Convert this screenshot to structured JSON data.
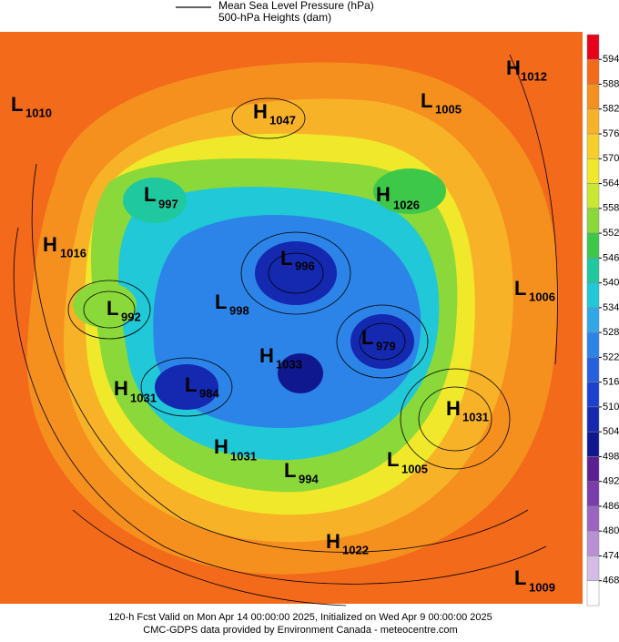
{
  "header": {
    "legend_line": "Mean Sea Level Pressure (hPa)",
    "legend_fill": "500-hPa Heights (dam)"
  },
  "colorbar": {
    "ticks": [
      594,
      588,
      582,
      576,
      570,
      564,
      558,
      552,
      546,
      540,
      534,
      528,
      522,
      516,
      510,
      504,
      498,
      492,
      486,
      480,
      474,
      468
    ],
    "colors": [
      "#e8001a",
      "#f26a1a",
      "#f5901e",
      "#f8b228",
      "#f8ce2a",
      "#f0e82a",
      "#c8e832",
      "#8ad83a",
      "#3ec84a",
      "#20c8a0",
      "#20c8d8",
      "#30a8e8",
      "#2c84e8",
      "#2460e0",
      "#1c40d0",
      "#1428b0",
      "#101890",
      "#5a2090",
      "#7a3ca8",
      "#9a64c0",
      "#b890d4",
      "#d4bce6",
      "#ffffff"
    ]
  },
  "centers": [
    {
      "type": "H",
      "value": 1012
    },
    {
      "type": "L",
      "value": 1010
    },
    {
      "type": "H",
      "value": 1047
    },
    {
      "type": "L",
      "value": 1005
    },
    {
      "type": "L",
      "value": 997
    },
    {
      "type": "H",
      "value": 1026
    },
    {
      "type": "H",
      "value": 1016
    },
    {
      "type": "L",
      "value": 996
    },
    {
      "type": "L",
      "value": 1006
    },
    {
      "type": "L",
      "value": 992
    },
    {
      "type": "L",
      "value": 998
    },
    {
      "type": "L",
      "value": 979
    },
    {
      "type": "H",
      "value": 1033
    },
    {
      "type": "H",
      "value": 1031
    },
    {
      "type": "L",
      "value": 984
    },
    {
      "type": "H",
      "value": 1031
    },
    {
      "type": "H",
      "value": 1031
    },
    {
      "type": "L",
      "value": 994
    },
    {
      "type": "L",
      "value": 1005
    },
    {
      "type": "H",
      "value": 1022
    },
    {
      "type": "L",
      "value": 1009
    }
  ],
  "footer": [
    "120-h Fcst Valid on Mon Apr 14 00:00:00 2025, Initialized on Wed Apr  9 00:00:00 2025",
    "CMC-GDPS data provided by Environment Canada - meteocentre.com"
  ]
}
